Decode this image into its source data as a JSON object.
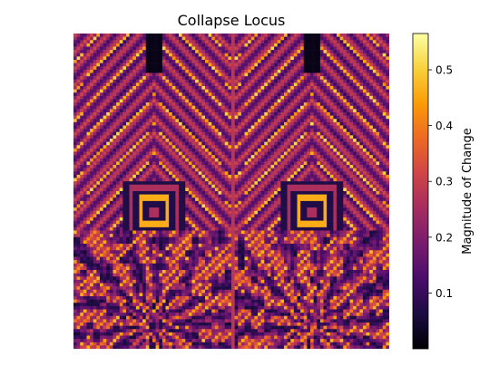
{
  "chart_data": {
    "type": "heatmap",
    "title": "Collapse Locus",
    "xlabel": "",
    "ylabel": "",
    "axes_visible": false,
    "grid": false,
    "colormap": "inferno",
    "colorbar": {
      "label": "Magnitude of Change",
      "range": [
        0.0,
        0.565
      ],
      "ticks": [
        0.1,
        0.2,
        0.3,
        0.4,
        0.5
      ],
      "tick_labels": [
        "0.1",
        "0.2",
        "0.3",
        "0.4",
        "0.5"
      ],
      "placement": "right"
    },
    "description_values": {
      "background_level": 0.12,
      "peak_level": 0.45
    }
  },
  "colors": {
    "colormap_stops": [
      "#000004",
      "#1b0c41",
      "#4a0c6b",
      "#781c6d",
      "#a52c60",
      "#cf4446",
      "#ed6925",
      "#fb9b06",
      "#f7d13d",
      "#fcffa4"
    ]
  }
}
